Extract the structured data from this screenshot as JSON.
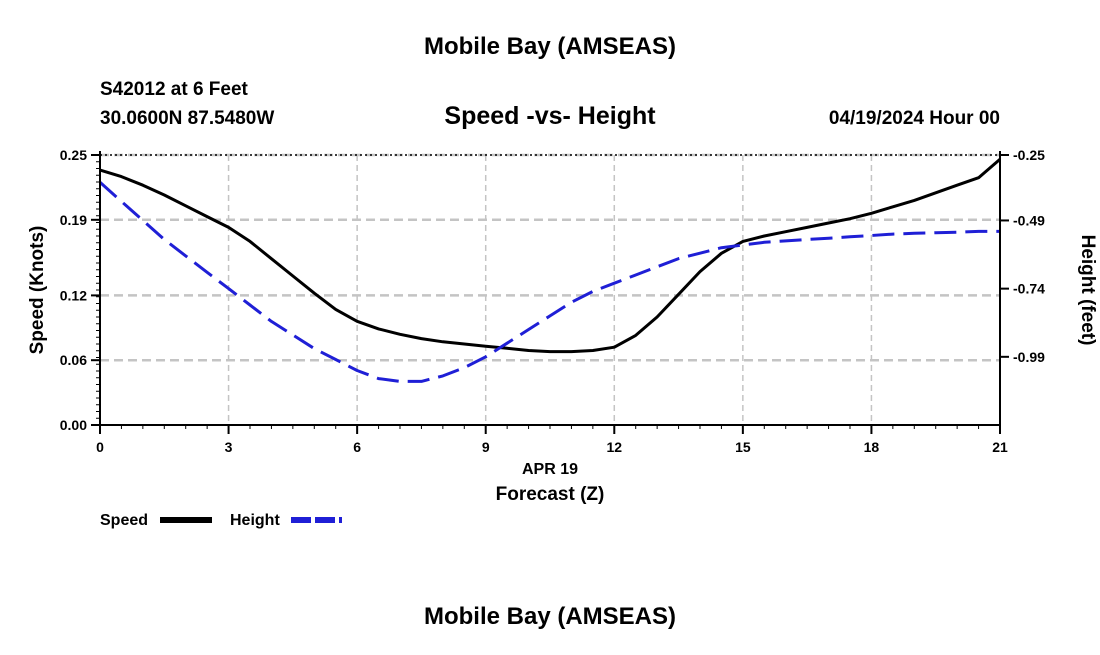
{
  "page": {
    "title_top": "Mobile Bay (AMSEAS)",
    "title_bottom": "Mobile Bay (AMSEAS)",
    "station": "S42012 at 6 Feet",
    "coords": "30.0600N  87.5480W",
    "datetime": "04/19/2024 Hour 00"
  },
  "chart_data": {
    "type": "line",
    "title": "Speed -vs- Height",
    "xlabel": "Forecast (Z)",
    "xlabel_date": "APR 19",
    "ylabel": "Speed (Knots)",
    "y2label": "Height (feet)",
    "xlim": [
      0,
      21
    ],
    "ylim": [
      0,
      0.25
    ],
    "y2lim": [
      -1.24,
      -0.25
    ],
    "x_ticks": [
      0,
      3,
      6,
      9,
      12,
      15,
      18,
      21
    ],
    "x_tick_labels": [
      "0",
      "3",
      "6",
      "9",
      "12",
      "15",
      "18",
      "21"
    ],
    "y_ticks": [
      0,
      0.06,
      0.12,
      0.19,
      0.25
    ],
    "y_tick_labels": [
      "0.00",
      "0.06",
      "0.12",
      "0.19",
      "0.25"
    ],
    "y2_ticks": [
      -0.99,
      -0.74,
      -0.49,
      -0.25
    ],
    "y2_tick_labels": [
      "-0.99",
      "-0.74",
      "-0.49",
      "-0.25"
    ],
    "grid": true,
    "series": [
      {
        "name": "Speed",
        "axis": "left",
        "color": "#000000",
        "dash": "solid",
        "x": [
          0,
          0.5,
          1,
          1.5,
          2,
          2.5,
          3,
          3.5,
          4,
          4.5,
          5,
          5.5,
          6,
          6.5,
          7,
          7.5,
          8,
          8.5,
          9,
          9.5,
          10,
          10.5,
          11,
          11.5,
          12,
          12.5,
          13,
          13.5,
          14,
          14.5,
          15,
          15.5,
          16,
          16.5,
          17,
          17.5,
          18,
          18.5,
          19,
          19.5,
          20,
          20.5,
          21
        ],
        "values": [
          0.236,
          0.23,
          0.222,
          0.213,
          0.203,
          0.193,
          0.183,
          0.17,
          0.154,
          0.138,
          0.122,
          0.107,
          0.096,
          0.089,
          0.084,
          0.08,
          0.077,
          0.075,
          0.073,
          0.071,
          0.069,
          0.068,
          0.068,
          0.069,
          0.072,
          0.083,
          0.1,
          0.121,
          0.142,
          0.159,
          0.17,
          0.175,
          0.179,
          0.183,
          0.187,
          0.191,
          0.196,
          0.202,
          0.208,
          0.215,
          0.222,
          0.229,
          0.246
        ]
      },
      {
        "name": "Height",
        "axis": "right",
        "color": "#1f1fd6",
        "dash": "dashed",
        "x": [
          0,
          0.5,
          1,
          1.5,
          2,
          2.5,
          3,
          3.5,
          4,
          4.5,
          5,
          5.5,
          6,
          6.5,
          7,
          7.5,
          8,
          8.5,
          9,
          9.5,
          10,
          10.5,
          11,
          11.5,
          12,
          12.5,
          13,
          13.5,
          14,
          14.5,
          15,
          15.5,
          16,
          16.5,
          17,
          17.5,
          18,
          18.5,
          19,
          19.5,
          20,
          20.5,
          21
        ],
        "values": [
          -0.35,
          -0.42,
          -0.49,
          -0.56,
          -0.62,
          -0.68,
          -0.74,
          -0.8,
          -0.86,
          -0.91,
          -0.96,
          -1.0,
          -1.04,
          -1.07,
          -1.08,
          -1.08,
          -1.06,
          -1.03,
          -0.99,
          -0.94,
          -0.89,
          -0.84,
          -0.79,
          -0.75,
          -0.72,
          -0.69,
          -0.66,
          -0.63,
          -0.61,
          -0.59,
          -0.58,
          -0.57,
          -0.565,
          -0.56,
          -0.555,
          -0.55,
          -0.545,
          -0.54,
          -0.537,
          -0.535,
          -0.533,
          -0.53,
          -0.53
        ]
      }
    ]
  }
}
